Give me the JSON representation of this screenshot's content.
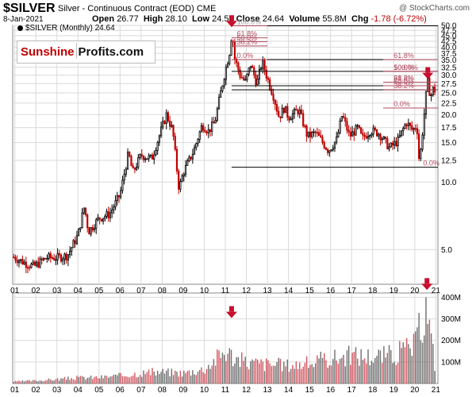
{
  "header": {
    "symbol": "$SILVER",
    "description": "Silver - Continuous Contract (EOD)",
    "exchange": "CME",
    "copyright": "@ StockCharts.com",
    "date": "8-Jan-2021",
    "open_label": "Open",
    "open": "26.77",
    "high_label": "High",
    "high": "28.10",
    "low_label": "Low",
    "low": "24.53",
    "close_label": "Close",
    "close": "24.64",
    "volume_label": "Volume",
    "volume": "55.8M",
    "chg_label": "Chg",
    "chg": "-1.78 (-6.72%)"
  },
  "legend": {
    "text": "$SILVER (Monthly) 24.64"
  },
  "logo": {
    "part1": "Sunshine",
    "part2": "Profits.com"
  },
  "colors": {
    "up": "#000000",
    "down": "#c00000",
    "arrow": "#c8102e",
    "fib": "#b24d62",
    "grid": "#d9d9d9"
  },
  "chart_data": [
    {
      "type": "candlestick",
      "title": "$SILVER (Monthly) 24.64",
      "scale": "log",
      "ylim": [
        3.5,
        50
      ],
      "yticks": [
        5.0,
        10.0,
        12.5,
        15.0,
        17.5,
        20.0,
        22.5,
        25.0,
        27.5,
        30.0,
        32.5,
        35.0,
        37.5,
        40.0,
        42.5,
        45.0,
        47.5,
        50.0
      ],
      "ytick_labels": [
        "5.0",
        "10.0",
        "12.5",
        "15.0",
        "17.5",
        "20.0",
        "22.5",
        "25.0",
        "27.5",
        "30.0",
        "32.5",
        "35.0",
        "37.5",
        "40.0",
        "42.5",
        "45.0",
        "47.5",
        "50.0"
      ],
      "year_labels": [
        "01",
        "02",
        "03",
        "04",
        "05",
        "06",
        "07",
        "08",
        "09",
        "10",
        "11",
        "12",
        "13",
        "14",
        "15",
        "16",
        "17",
        "18",
        "19",
        "20",
        "21"
      ],
      "xlim": [
        2000.9,
        2021.1
      ],
      "grid": true,
      "price_path": [
        [
          2000.9,
          4.65
        ],
        [
          2001.5,
          4.35
        ],
        [
          2001.9,
          4.2
        ],
        [
          2002.5,
          4.6
        ],
        [
          2003.0,
          4.6
        ],
        [
          2003.5,
          4.7
        ],
        [
          2004.0,
          5.8
        ],
        [
          2004.3,
          7.8
        ],
        [
          2004.5,
          6.0
        ],
        [
          2005.0,
          6.9
        ],
        [
          2005.5,
          7.2
        ],
        [
          2006.0,
          8.8
        ],
        [
          2006.4,
          13.5
        ],
        [
          2006.6,
          11.0
        ],
        [
          2007.0,
          13.2
        ],
        [
          2007.5,
          12.7
        ],
        [
          2008.2,
          20.0
        ],
        [
          2008.5,
          17.0
        ],
        [
          2008.8,
          9.3
        ],
        [
          2009.0,
          11.0
        ],
        [
          2009.5,
          13.8
        ],
        [
          2009.9,
          18.0
        ],
        [
          2010.2,
          16.9
        ],
        [
          2010.5,
          18.5
        ],
        [
          2010.9,
          28.5
        ],
        [
          2011.2,
          38.0
        ],
        [
          2011.32,
          47.0
        ],
        [
          2011.45,
          35.5
        ],
        [
          2011.7,
          30.0
        ],
        [
          2011.95,
          28.0
        ],
        [
          2012.2,
          33.5
        ],
        [
          2012.5,
          27.5
        ],
        [
          2012.75,
          34.5
        ],
        [
          2012.95,
          30.0
        ],
        [
          2013.3,
          24.0
        ],
        [
          2013.55,
          19.5
        ],
        [
          2013.8,
          21.5
        ],
        [
          2014.0,
          19.5
        ],
        [
          2014.5,
          21.0
        ],
        [
          2014.9,
          16.0
        ],
        [
          2015.3,
          16.6
        ],
        [
          2015.9,
          13.8
        ],
        [
          2016.3,
          15.5
        ],
        [
          2016.55,
          20.0
        ],
        [
          2016.9,
          16.0
        ],
        [
          2017.3,
          17.5
        ],
        [
          2017.5,
          15.6
        ],
        [
          2017.9,
          17.0
        ],
        [
          2018.3,
          16.5
        ],
        [
          2018.8,
          14.2
        ],
        [
          2019.2,
          15.3
        ],
        [
          2019.6,
          18.5
        ],
        [
          2019.9,
          17.0
        ],
        [
          2020.1,
          18.0
        ],
        [
          2020.22,
          12.0
        ],
        [
          2020.4,
          18.0
        ],
        [
          2020.6,
          28.5
        ],
        [
          2020.75,
          24.0
        ],
        [
          2020.9,
          26.5
        ],
        [
          2021.02,
          24.64
        ]
      ],
      "current_price": 24.64,
      "high_point": {
        "x": 2011.3,
        "value": 49.8
      },
      "low_point": {
        "x": 2020.22,
        "value": 11.64
      },
      "fib_upper": [
        {
          "label": "100.0%",
          "value": 49.8
        },
        {
          "label": "61.8%",
          "value": 44.0
        },
        {
          "label": "50.0%",
          "value": 42.3
        },
        {
          "label": "38.2%",
          "value": 40.5
        },
        {
          "label": "0.0%",
          "value": 35.2
        }
      ],
      "fib_lower": [
        {
          "label": "61.8%",
          "value": 35.2
        },
        {
          "label": "100.0%",
          "value": 31.2
        },
        {
          "label": "50.0%",
          "value": 31.2
        },
        {
          "label": "61.8%",
          "value": 27.9
        },
        {
          "label": "38.2%",
          "value": 27.9
        },
        {
          "label": "50.0%",
          "value": 26.9
        },
        {
          "label": "38.2%",
          "value": 25.8
        },
        {
          "label": "0.0%",
          "value": 21.4
        },
        {
          "label": "0.0%",
          "value": 11.64
        }
      ],
      "h_lines": [
        49.8,
        35.2,
        31.2,
        26.9,
        25.8,
        11.64
      ],
      "arrows": [
        {
          "x": 2011.3,
          "value": 52
        },
        {
          "x": 2020.62,
          "value": 30.5
        }
      ]
    },
    {
      "type": "bar",
      "title": "Volume",
      "ylim": [
        0,
        420
      ],
      "yticks": [
        100,
        200,
        300,
        400
      ],
      "ytick_labels": [
        "100M",
        "200M",
        "300M",
        "400M"
      ],
      "volume_path": [
        [
          2001,
          10
        ],
        [
          2002,
          15
        ],
        [
          2003,
          22
        ],
        [
          2004,
          30
        ],
        [
          2005,
          32
        ],
        [
          2006,
          40
        ],
        [
          2007,
          55
        ],
        [
          2008,
          60
        ],
        [
          2009,
          55
        ],
        [
          2010,
          75
        ],
        [
          2011,
          170
        ],
        [
          2011.5,
          130
        ],
        [
          2012,
          110
        ],
        [
          2013,
          100
        ],
        [
          2014,
          95
        ],
        [
          2015,
          105
        ],
        [
          2016,
          130
        ],
        [
          2017,
          145
        ],
        [
          2018,
          140
        ],
        [
          2019,
          150
        ],
        [
          2020,
          195
        ],
        [
          2020.58,
          405
        ],
        [
          2020.75,
          240
        ],
        [
          2021.02,
          55
        ]
      ],
      "arrows": [
        {
          "x": 2011.3,
          "value": 300
        },
        {
          "x": 2020.58,
          "value": 430
        }
      ]
    }
  ]
}
